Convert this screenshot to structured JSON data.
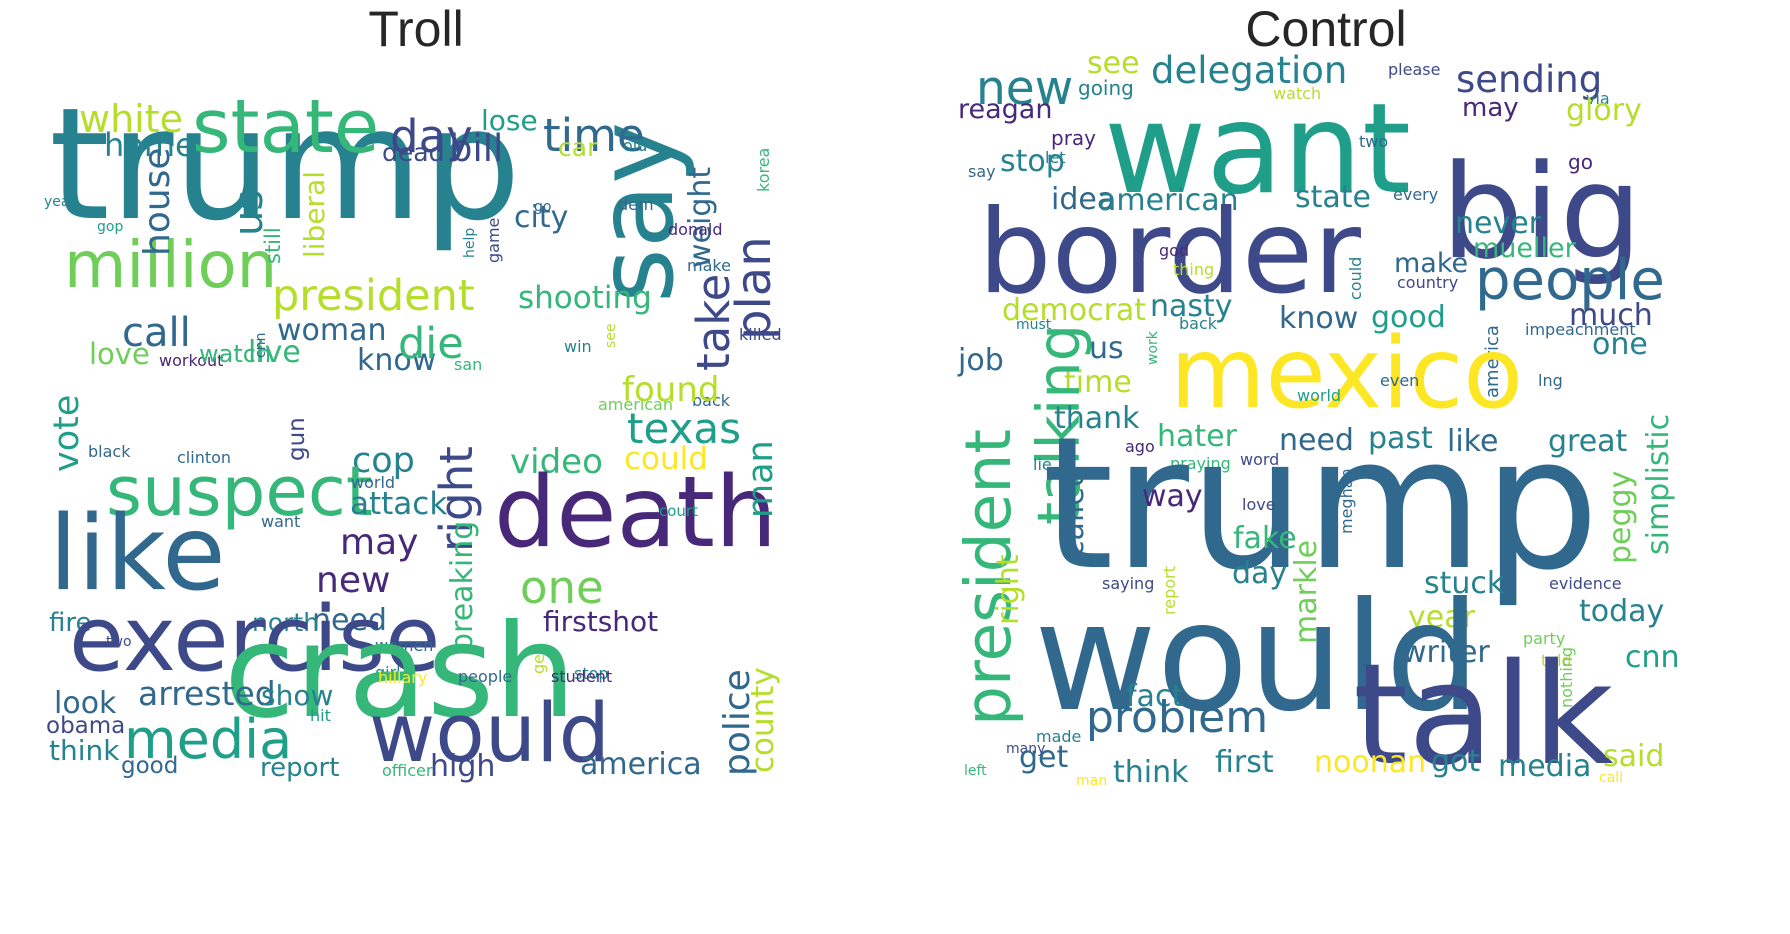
{
  "titles": {
    "left": "Troll",
    "right": "Control"
  },
  "palette": [
    "#440154",
    "#482878",
    "#3e4989",
    "#31688e",
    "#26828e",
    "#1f9e89",
    "#35b779",
    "#6ece58",
    "#b5de2b",
    "#fde725"
  ],
  "clouds": {
    "troll": [
      {
        "w": "trump",
        "c": 4
      },
      {
        "w": "say",
        "c": 4
      },
      {
        "w": "state",
        "c": 6
      },
      {
        "w": "white",
        "c": 8
      },
      {
        "w": "home",
        "c": 4
      },
      {
        "w": "day",
        "c": 2
      },
      {
        "w": "time",
        "c": 3
      },
      {
        "w": "lose",
        "c": 5
      },
      {
        "w": "car",
        "c": 8
      },
      {
        "w": "weight",
        "c": 3
      },
      {
        "w": "dead",
        "c": 2
      },
      {
        "w": "bill",
        "c": 2
      },
      {
        "w": "old",
        "c": 4
      },
      {
        "w": "korea",
        "c": 6
      },
      {
        "w": "million",
        "c": 7
      },
      {
        "w": "year",
        "c": 4
      },
      {
        "w": "gop",
        "c": 5
      },
      {
        "w": "still",
        "c": 6
      },
      {
        "w": "us",
        "c": 4
      },
      {
        "w": "house",
        "c": 3
      },
      {
        "w": "liberal",
        "c": 8
      },
      {
        "w": "city",
        "c": 3
      },
      {
        "w": "go",
        "c": 3
      },
      {
        "w": "dem",
        "c": 3
      },
      {
        "w": "help",
        "c": 4
      },
      {
        "w": "game",
        "c": 2
      },
      {
        "w": "donald",
        "c": 1
      },
      {
        "w": "plan",
        "c": 2
      },
      {
        "w": "president",
        "c": 8
      },
      {
        "w": "shooting",
        "c": 6
      },
      {
        "w": "call",
        "c": 3
      },
      {
        "w": "woman",
        "c": 3
      },
      {
        "w": "take",
        "c": 2
      },
      {
        "w": "make",
        "c": 3
      },
      {
        "w": "love",
        "c": 7
      },
      {
        "w": "workout",
        "c": 1
      },
      {
        "w": "watch",
        "c": 6
      },
      {
        "w": "live",
        "c": 6
      },
      {
        "w": "cnn",
        "c": 3
      },
      {
        "w": "know",
        "c": 3
      },
      {
        "w": "die",
        "c": 6
      },
      {
        "w": "win",
        "c": 4
      },
      {
        "w": "killed",
        "c": 2
      },
      {
        "w": "san",
        "c": 6
      },
      {
        "w": "see",
        "c": 8
      },
      {
        "w": "vote",
        "c": 5
      },
      {
        "w": "gun",
        "c": 2
      },
      {
        "w": "back",
        "c": 3
      },
      {
        "w": "american",
        "c": 7
      },
      {
        "w": "found",
        "c": 8
      },
      {
        "w": "texas",
        "c": 5
      },
      {
        "w": "cop",
        "c": 4
      },
      {
        "w": "black",
        "c": 3
      },
      {
        "w": "clinton",
        "c": 3
      },
      {
        "w": "suspect",
        "c": 6
      },
      {
        "w": "world",
        "c": 3
      },
      {
        "w": "video",
        "c": 6
      },
      {
        "w": "could",
        "c": 9
      },
      {
        "w": "death",
        "c": 1
      },
      {
        "w": "attack",
        "c": 4
      },
      {
        "w": "man",
        "c": 5
      },
      {
        "w": "want",
        "c": 3
      },
      {
        "w": "right",
        "c": 2
      },
      {
        "w": "court",
        "c": 5
      },
      {
        "w": "like",
        "c": 3
      },
      {
        "w": "may",
        "c": 1
      },
      {
        "w": "new",
        "c": 1
      },
      {
        "w": "one",
        "c": 7
      },
      {
        "w": "need",
        "c": 3
      },
      {
        "w": "breaking",
        "c": 6
      },
      {
        "w": "fire",
        "c": 4
      },
      {
        "w": "north",
        "c": 4
      },
      {
        "w": "firstshot",
        "c": 1
      },
      {
        "w": "two",
        "c": 2
      },
      {
        "w": "exercise",
        "c": 2
      },
      {
        "w": "women",
        "c": 3
      },
      {
        "w": "get",
        "c": 8
      },
      {
        "w": "girl",
        "c": 4
      },
      {
        "w": "crash",
        "c": 6
      },
      {
        "w": "police",
        "c": 3
      },
      {
        "w": "hillary",
        "c": 9
      },
      {
        "w": "stop",
        "c": 4
      },
      {
        "w": "county",
        "c": 8
      },
      {
        "w": "arrested",
        "c": 3
      },
      {
        "w": "look",
        "c": 3
      },
      {
        "w": "show",
        "c": 4
      },
      {
        "w": "media",
        "c": 5
      },
      {
        "w": "people",
        "c": 3
      },
      {
        "w": "student",
        "c": 1
      },
      {
        "w": "would",
        "c": 2
      },
      {
        "w": "obama",
        "c": 2
      },
      {
        "w": "hit",
        "c": 5
      },
      {
        "w": "think",
        "c": 4
      },
      {
        "w": "good",
        "c": 3
      },
      {
        "w": "report",
        "c": 4
      },
      {
        "w": "officer",
        "c": 6
      },
      {
        "w": "high",
        "c": 2
      },
      {
        "w": "america",
        "c": 3
      },
      {
        "w": "school",
        "c": 2
      }
    ],
    "control": [
      {
        "w": "new",
        "c": 4
      },
      {
        "w": "see",
        "c": 8
      },
      {
        "w": "going",
        "c": 4
      },
      {
        "w": "delegation",
        "c": 4
      },
      {
        "w": "please",
        "c": 2
      },
      {
        "w": "sending",
        "c": 2
      },
      {
        "w": "via",
        "c": 4
      },
      {
        "w": "reagan",
        "c": 1
      },
      {
        "w": "watch",
        "c": 8
      },
      {
        "w": "may",
        "c": 1
      },
      {
        "w": "glory",
        "c": 8
      },
      {
        "w": "want",
        "c": 5
      },
      {
        "w": "pray",
        "c": 1
      },
      {
        "w": "two",
        "c": 3
      },
      {
        "w": "big",
        "c": 2
      },
      {
        "w": "go",
        "c": 1
      },
      {
        "w": "let",
        "c": 4
      },
      {
        "w": "say",
        "c": 3
      },
      {
        "w": "stop",
        "c": 4
      },
      {
        "w": "idea",
        "c": 3
      },
      {
        "w": "american",
        "c": 4
      },
      {
        "w": "state",
        "c": 4
      },
      {
        "w": "every",
        "c": 3
      },
      {
        "w": "border",
        "c": 2
      },
      {
        "w": "never",
        "c": 4
      },
      {
        "w": "mueller",
        "c": 6
      },
      {
        "w": "god",
        "c": 1
      },
      {
        "w": "thing",
        "c": 8
      },
      {
        "w": "could",
        "c": 4
      },
      {
        "w": "make",
        "c": 3
      },
      {
        "w": "country",
        "c": 2
      },
      {
        "w": "people",
        "c": 3
      },
      {
        "w": "democrat",
        "c": 8
      },
      {
        "w": "nasty",
        "c": 4
      },
      {
        "w": "one",
        "c": 4
      },
      {
        "w": "know",
        "c": 3
      },
      {
        "w": "good",
        "c": 5
      },
      {
        "w": "much",
        "c": 2
      },
      {
        "w": "must",
        "c": 4
      },
      {
        "w": "back",
        "c": 4
      },
      {
        "w": "impeachment",
        "c": 3
      },
      {
        "w": "america",
        "c": 3
      },
      {
        "w": "job",
        "c": 3
      },
      {
        "w": "us",
        "c": 3
      },
      {
        "w": "work",
        "c": 6
      },
      {
        "w": "mexico",
        "c": 9
      },
      {
        "w": "time",
        "c": 8
      },
      {
        "w": "even",
        "c": 3
      },
      {
        "w": "lng",
        "c": 3
      },
      {
        "w": "talking",
        "c": 6
      },
      {
        "w": "world",
        "c": 5
      },
      {
        "w": "thank",
        "c": 4
      },
      {
        "w": "ago",
        "c": 1
      },
      {
        "w": "hater",
        "c": 6
      },
      {
        "w": "need",
        "c": 3
      },
      {
        "w": "past",
        "c": 4
      },
      {
        "w": "like",
        "c": 3
      },
      {
        "w": "great",
        "c": 4
      },
      {
        "w": "lie",
        "c": 4
      },
      {
        "w": "praying",
        "c": 6
      },
      {
        "w": "word",
        "c": 2
      },
      {
        "w": "president",
        "c": 6
      },
      {
        "w": "trump",
        "c": 3
      },
      {
        "w": "meghan",
        "c": 3
      },
      {
        "w": "peggy",
        "c": 7
      },
      {
        "w": "way",
        "c": 1
      },
      {
        "w": "called",
        "c": 3
      },
      {
        "w": "love",
        "c": 2
      },
      {
        "w": "fake",
        "c": 6
      },
      {
        "w": "simplistic",
        "c": 6
      },
      {
        "w": "day",
        "c": 4
      },
      {
        "w": "evidence",
        "c": 2
      },
      {
        "w": "saying",
        "c": 2
      },
      {
        "w": "report",
        "c": 8
      },
      {
        "w": "stuck",
        "c": 4
      },
      {
        "w": "today",
        "c": 4
      },
      {
        "w": "markle",
        "c": 7
      },
      {
        "w": "year",
        "c": 8
      },
      {
        "w": "would",
        "c": 3
      },
      {
        "w": "party",
        "c": 7
      },
      {
        "w": "right",
        "c": 8
      },
      {
        "w": "writer",
        "c": 3
      },
      {
        "w": "cnn",
        "c": 5
      },
      {
        "w": "told",
        "c": 8
      },
      {
        "w": "nothing",
        "c": 7
      },
      {
        "w": "talk",
        "c": 2
      },
      {
        "w": "fact",
        "c": 4
      },
      {
        "w": "problem",
        "c": 3
      },
      {
        "w": "made",
        "c": 4
      },
      {
        "w": "many",
        "c": 2
      },
      {
        "w": "get",
        "c": 3
      },
      {
        "w": "think",
        "c": 4
      },
      {
        "w": "first",
        "c": 4
      },
      {
        "w": "noonan",
        "c": 9
      },
      {
        "w": "got",
        "c": 4
      },
      {
        "w": "media",
        "c": 4
      },
      {
        "w": "said",
        "c": 8
      },
      {
        "w": "left",
        "c": 6
      },
      {
        "w": "man",
        "c": 9
      },
      {
        "w": "call",
        "c": 9
      }
    ]
  }
}
